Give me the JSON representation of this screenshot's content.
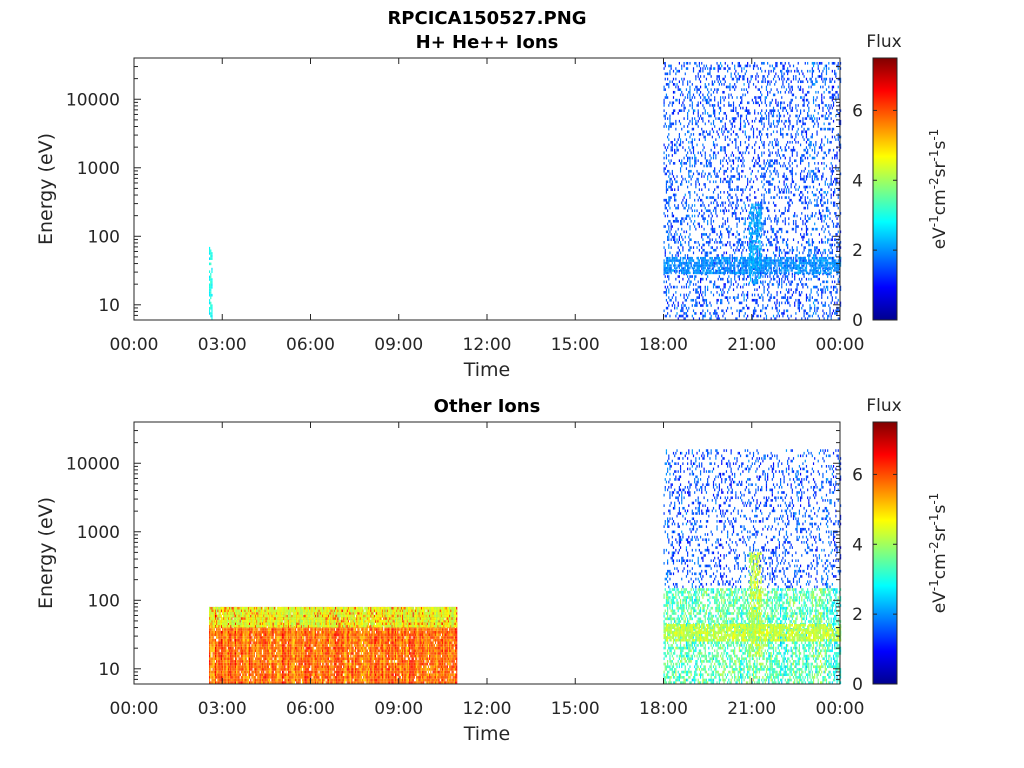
{
  "figure": {
    "title": "RPCICA150527.PNG"
  },
  "chart_data": [
    {
      "type": "heatmap",
      "title": "H+ He++ Ions",
      "xlabel": "Time",
      "ylabel": "Energy (eV)",
      "x_ticks": [
        "00:00",
        "03:00",
        "06:00",
        "09:00",
        "12:00",
        "15:00",
        "18:00",
        "21:00",
        "00:00"
      ],
      "x_range_hours": [
        0,
        24
      ],
      "y_scale": "log",
      "y_ticks": [
        "10",
        "100",
        "1000",
        "10000"
      ],
      "y_range": [
        6,
        40000
      ],
      "colorbar": {
        "title": "Flux",
        "label": "eV-1cm-2sr-1s-1",
        "label_parts": [
          "eV",
          "-1",
          "cm",
          "-2",
          "sr",
          "-1",
          "s",
          "-1"
        ],
        "ticks": [
          "0",
          "2",
          "4",
          "6"
        ],
        "range": [
          0,
          7.5
        ],
        "colormap": "jet"
      },
      "regions": [
        {
          "t_start": 2.55,
          "t_end": 2.65,
          "e_min": 6,
          "e_max": 70,
          "flux_min": 2.5,
          "flux_max": 3.5,
          "density": 0.6
        },
        {
          "t_start": 18.0,
          "t_end": 24.0,
          "e_min": 6,
          "e_max": 35000,
          "flux_min": 0.8,
          "flux_max": 2.2,
          "density": 0.25
        },
        {
          "t_start": 18.0,
          "t_end": 24.0,
          "e_min": 28,
          "e_max": 50,
          "flux_min": 1.5,
          "flux_max": 2.4,
          "density": 0.7
        },
        {
          "t_start": 20.9,
          "t_end": 21.3,
          "e_min": 20,
          "e_max": 300,
          "flux_min": 1.8,
          "flux_max": 2.6,
          "density": 0.6
        }
      ]
    },
    {
      "type": "heatmap",
      "title": "Other Ions",
      "xlabel": "Time",
      "ylabel": "Energy (eV)",
      "x_ticks": [
        "00:00",
        "03:00",
        "06:00",
        "09:00",
        "12:00",
        "15:00",
        "18:00",
        "21:00",
        "00:00"
      ],
      "x_range_hours": [
        0,
        24
      ],
      "y_scale": "log",
      "y_ticks": [
        "10",
        "100",
        "1000",
        "10000"
      ],
      "y_range": [
        6,
        40000
      ],
      "colorbar": {
        "title": "Flux",
        "label": "eV-1cm-2sr-1s-1",
        "label_parts": [
          "eV",
          "-1",
          "cm",
          "-2",
          "sr",
          "-1",
          "s",
          "-1"
        ],
        "ticks": [
          "0",
          "2",
          "4",
          "6"
        ],
        "range": [
          0,
          7.5
        ],
        "colormap": "jet"
      },
      "regions": [
        {
          "t_start": 2.55,
          "t_end": 10.95,
          "e_min": 6,
          "e_max": 80,
          "flux_min": 4.8,
          "flux_max": 6.8,
          "density": 0.95
        },
        {
          "t_start": 2.55,
          "t_end": 10.95,
          "e_min": 40,
          "e_max": 80,
          "flux_min": 3.8,
          "flux_max": 5.0,
          "density": 0.8
        },
        {
          "t_start": 18.0,
          "t_end": 24.0,
          "e_min": 150,
          "e_max": 16000,
          "flux_min": 0.8,
          "flux_max": 2.2,
          "density": 0.2
        },
        {
          "t_start": 18.0,
          "t_end": 24.0,
          "e_min": 6,
          "e_max": 150,
          "flux_min": 2.2,
          "flux_max": 4.5,
          "density": 0.55
        },
        {
          "t_start": 18.0,
          "t_end": 24.0,
          "e_min": 25,
          "e_max": 45,
          "flux_min": 3.8,
          "flux_max": 4.8,
          "density": 0.75
        },
        {
          "t_start": 20.9,
          "t_end": 21.3,
          "e_min": 15,
          "e_max": 500,
          "flux_min": 3.5,
          "flux_max": 5.0,
          "density": 0.6
        }
      ]
    }
  ]
}
